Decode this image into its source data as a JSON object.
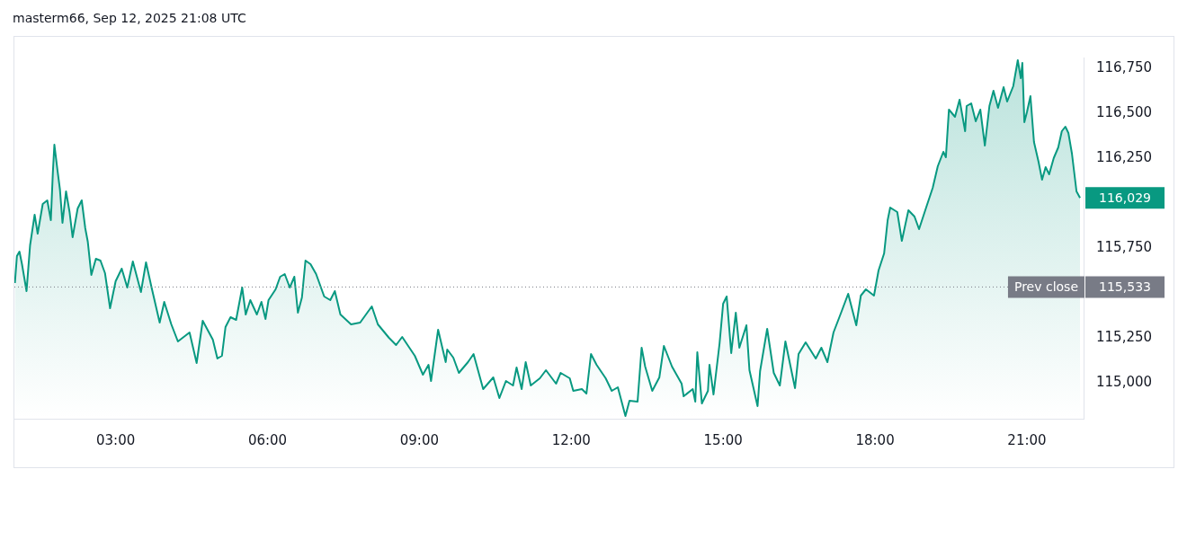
{
  "chart_data": {
    "type": "area",
    "title": "masterm66, Sep 12, 2025 21:08 UTC",
    "x": [
      1.01,
      1.05,
      1.1,
      1.15,
      1.24,
      1.31,
      1.4,
      1.46,
      1.56,
      1.65,
      1.72,
      1.76,
      1.79,
      1.85,
      1.9,
      1.95,
      2.02,
      2.09,
      2.15,
      2.25,
      2.33,
      2.4,
      2.45,
      2.52,
      2.61,
      2.7,
      2.79,
      2.89,
      3.0,
      3.12,
      3.23,
      3.34,
      3.5,
      3.6,
      3.71,
      3.87,
      3.96,
      4.1,
      4.23,
      4.46,
      4.6,
      4.72,
      4.92,
      5.01,
      5.1,
      5.17,
      5.27,
      5.38,
      5.5,
      5.57,
      5.66,
      5.79,
      5.88,
      5.96,
      6.02,
      6.16,
      6.25,
      6.34,
      6.44,
      6.53,
      6.6,
      6.68,
      6.75,
      6.85,
      6.96,
      7.12,
      7.24,
      7.33,
      7.44,
      7.65,
      7.83,
      8.06,
      8.18,
      8.4,
      8.54,
      8.66,
      8.91,
      9.07,
      9.18,
      9.23,
      9.37,
      9.52,
      9.55,
      9.67,
      9.78,
      9.96,
      10.07,
      10.26,
      10.46,
      10.58,
      10.71,
      10.85,
      10.92,
      11.02,
      11.1,
      11.2,
      11.38,
      11.5,
      11.7,
      11.79,
      11.97,
      12.04,
      12.21,
      12.3,
      12.39,
      12.5,
      12.68,
      12.8,
      12.92,
      13.07,
      13.15,
      13.31,
      13.39,
      13.46,
      13.6,
      13.74,
      13.83,
      13.99,
      14.18,
      14.22,
      14.4,
      14.45,
      14.49,
      14.58,
      14.7,
      14.73,
      14.81,
      14.93,
      15.0,
      15.07,
      15.16,
      15.25,
      15.32,
      15.46,
      15.52,
      15.68,
      15.73,
      15.87,
      16.0,
      16.12,
      16.23,
      16.42,
      16.49,
      16.63,
      16.83,
      16.94,
      17.06,
      17.18,
      17.33,
      17.47,
      17.63,
      17.72,
      17.82,
      17.98,
      18.07,
      18.18,
      18.25,
      18.3,
      18.44,
      18.53,
      18.66,
      18.78,
      18.87,
      19.01,
      19.14,
      19.24,
      19.35,
      19.4,
      19.46,
      19.58,
      19.67,
      19.78,
      19.81,
      19.9,
      19.99,
      20.08,
      20.17,
      20.26,
      20.34,
      20.43,
      20.54,
      20.61,
      20.73,
      20.82,
      20.88,
      20.91,
      20.95,
      21.0,
      21.07,
      21.14,
      21.23,
      21.3,
      21.37,
      21.44,
      21.53,
      21.62,
      21.69,
      21.76,
      21.82,
      21.89,
      21.98,
      22.05
    ],
    "series": [
      {
        "color": "#089981",
        "values": [
          115555,
          115705,
          115730,
          115660,
          115510,
          115765,
          115935,
          115830,
          115995,
          116015,
          115905,
          116170,
          116325,
          116185,
          116075,
          115890,
          116065,
          115950,
          115810,
          115970,
          116015,
          115860,
          115785,
          115600,
          115690,
          115680,
          115610,
          115415,
          115565,
          115635,
          115530,
          115675,
          115505,
          115670,
          115530,
          115335,
          115450,
          115325,
          115230,
          115280,
          115110,
          115345,
          115240,
          115135,
          115150,
          115310,
          115365,
          115350,
          115530,
          115380,
          115460,
          115380,
          115450,
          115355,
          115460,
          115520,
          115590,
          115605,
          115530,
          115590,
          115390,
          115475,
          115680,
          115660,
          115605,
          115480,
          115460,
          115510,
          115380,
          115325,
          115335,
          115425,
          115325,
          115250,
          115210,
          115255,
          115150,
          115045,
          115100,
          115010,
          115295,
          115115,
          115185,
          115140,
          115055,
          115115,
          115160,
          114965,
          115030,
          114915,
          115010,
          114985,
          115085,
          114965,
          115115,
          114985,
          115025,
          115070,
          114995,
          115055,
          115025,
          114955,
          114965,
          114940,
          115160,
          115100,
          115025,
          114955,
          114975,
          114815,
          114900,
          114895,
          115195,
          115090,
          114955,
          115030,
          115205,
          115090,
          114995,
          114925,
          114965,
          114895,
          115170,
          114885,
          114955,
          115100,
          114935,
          115220,
          115440,
          115480,
          115165,
          115390,
          115195,
          115320,
          115070,
          114870,
          115065,
          115300,
          115055,
          114985,
          115230,
          114970,
          115160,
          115225,
          115135,
          115195,
          115115,
          115280,
          115390,
          115495,
          115320,
          115485,
          115520,
          115485,
          115625,
          115720,
          115905,
          115975,
          115950,
          115790,
          115960,
          115925,
          115855,
          115975,
          116085,
          116205,
          116285,
          116255,
          116520,
          116480,
          116575,
          116400,
          116540,
          116555,
          116455,
          116520,
          116320,
          116540,
          116625,
          116530,
          116645,
          116565,
          116650,
          116795,
          116695,
          116780,
          116450,
          116505,
          116595,
          116340,
          116230,
          116130,
          116200,
          116160,
          116250,
          116310,
          116400,
          116425,
          116390,
          116275,
          116065,
          116029
        ]
      }
    ],
    "xlim": [
      1.0,
      22.12
    ],
    "xticks": [
      {
        "value": 3,
        "label": "03:00"
      },
      {
        "value": 6,
        "label": "06:00"
      },
      {
        "value": 9,
        "label": "09:00"
      },
      {
        "value": 12,
        "label": "12:00"
      },
      {
        "value": 15,
        "label": "15:00"
      },
      {
        "value": 18,
        "label": "18:00"
      },
      {
        "value": 21,
        "label": "21:00"
      }
    ],
    "ylim": [
      114800,
      116810
    ],
    "yticks": [
      {
        "value": 115000,
        "label": "115,000"
      },
      {
        "value": 115250,
        "label": "115,250"
      },
      {
        "value": 115750,
        "label": "115,750"
      },
      {
        "value": 116250,
        "label": "116,250"
      },
      {
        "value": 116500,
        "label": "116,500"
      },
      {
        "value": 116750,
        "label": "116,750"
      }
    ],
    "ref_lines": [
      {
        "axis": "y",
        "value": 115533,
        "label": "Prev close",
        "color": "#787b86",
        "line_style": "dotted"
      }
    ],
    "annotations": [
      {
        "text": "116,029",
        "x": 22.05,
        "y": 116029
      },
      "115,533"
    ],
    "grid": false,
    "legend": false,
    "marker": "none",
    "line_style": "solid"
  }
}
